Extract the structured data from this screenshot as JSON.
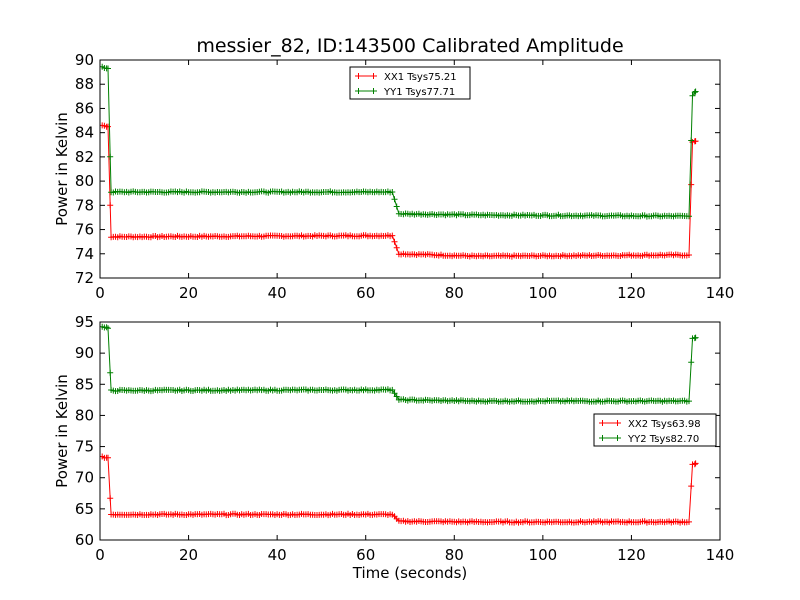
{
  "title": "messier_82, ID:143500 Calibrated Amplitude",
  "chart_data": [
    {
      "type": "line",
      "ylabel": "Power in Kelvin",
      "xlabel": "",
      "xlim": [
        0,
        140
      ],
      "ylim": [
        72,
        90
      ],
      "xticks": [
        0,
        20,
        40,
        60,
        80,
        100,
        120,
        140
      ],
      "yticks": [
        72,
        74,
        76,
        78,
        80,
        82,
        84,
        86,
        88,
        90
      ],
      "grid": false,
      "legend_position": "top-center",
      "series": [
        {
          "name": "XX1 Tsys75.21",
          "color": "#ff0000",
          "segments": [
            [
              0.5,
              84.6
            ],
            [
              1.8,
              84.5
            ],
            [
              2.5,
              75.4
            ],
            [
              66,
              75.5
            ],
            [
              67.5,
              74.0
            ],
            [
              85,
              73.8
            ],
            [
              133,
              73.9
            ],
            [
              133.8,
              83.2
            ],
            [
              134.5,
              83.3
            ]
          ]
        },
        {
          "name": "YY1 Tsys77.71",
          "color": "#008000",
          "segments": [
            [
              0.5,
              89.4
            ],
            [
              1.8,
              89.3
            ],
            [
              2.5,
              79.1
            ],
            [
              66,
              79.1
            ],
            [
              67.5,
              77.3
            ],
            [
              85,
              77.2
            ],
            [
              133,
              77.1
            ],
            [
              133.8,
              87.1
            ],
            [
              134.5,
              87.4
            ]
          ]
        }
      ]
    },
    {
      "type": "line",
      "ylabel": "Power in Kelvin",
      "xlabel": "Time (seconds)",
      "xlim": [
        0,
        140
      ],
      "ylim": [
        60,
        95
      ],
      "xticks": [
        0,
        20,
        40,
        60,
        80,
        100,
        120,
        140
      ],
      "yticks": [
        60,
        65,
        70,
        75,
        80,
        85,
        90,
        95
      ],
      "grid": false,
      "legend_position": "center-right",
      "series": [
        {
          "name": "XX2 Tsys63.98",
          "color": "#ff0000",
          "segments": [
            [
              0.5,
              73.3
            ],
            [
              1.8,
              73.2
            ],
            [
              2.5,
              64.1
            ],
            [
              66,
              64.1
            ],
            [
              67.5,
              63.0
            ],
            [
              85,
              62.9
            ],
            [
              133,
              62.9
            ],
            [
              133.8,
              72.1
            ],
            [
              134.5,
              72.3
            ]
          ]
        },
        {
          "name": "YY2 Tsys82.70",
          "color": "#008000",
          "segments": [
            [
              0.5,
              94.2
            ],
            [
              1.8,
              94.0
            ],
            [
              2.5,
              84.0
            ],
            [
              66,
              84.1
            ],
            [
              67.5,
              82.5
            ],
            [
              85,
              82.3
            ],
            [
              133,
              82.3
            ],
            [
              133.8,
              92.3
            ],
            [
              134.5,
              92.5
            ]
          ]
        }
      ]
    }
  ]
}
